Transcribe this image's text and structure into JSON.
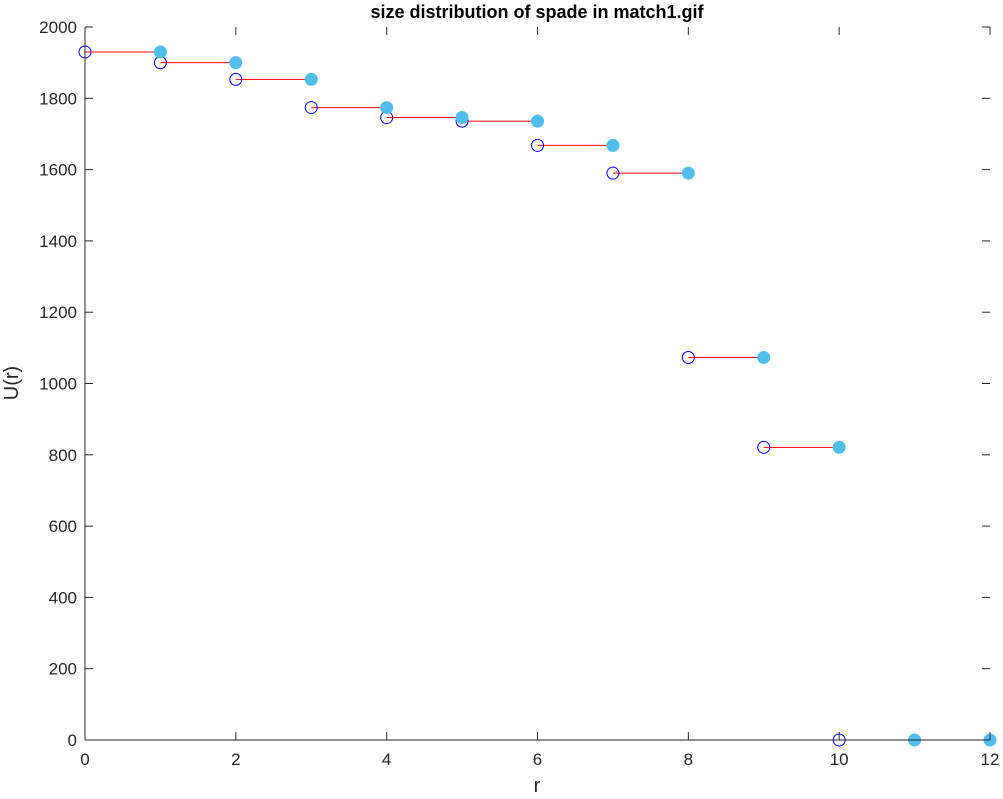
{
  "chart_data": {
    "type": "scatter",
    "title": "size distribution of spade in match1.gif",
    "xlabel": "r",
    "ylabel": "U(r)",
    "xlim": [
      0,
      12
    ],
    "ylim": [
      0,
      2000
    ],
    "xticks": [
      "0",
      "2",
      "4",
      "6",
      "8",
      "10",
      "12"
    ],
    "yticks": [
      "0",
      "200",
      "400",
      "600",
      "800",
      "1000",
      "1200",
      "1400",
      "1600",
      "1800",
      "2000"
    ],
    "grid": false,
    "series": [
      {
        "name": "open-circles",
        "marker": "open-circle",
        "color": "#0000ff",
        "points": [
          [
            0,
            1930
          ],
          [
            1,
            1900
          ],
          [
            2,
            1853
          ],
          [
            3,
            1774
          ],
          [
            4,
            1746
          ],
          [
            5,
            1736
          ],
          [
            6,
            1668
          ],
          [
            7,
            1590
          ],
          [
            8,
            1073
          ],
          [
            9,
            821
          ],
          [
            10,
            0
          ]
        ]
      },
      {
        "name": "filled-dots",
        "marker": "filled-circle",
        "color": "#4dbeee",
        "points": [
          [
            1,
            1930
          ],
          [
            2,
            1900
          ],
          [
            3,
            1853
          ],
          [
            4,
            1774
          ],
          [
            5,
            1746
          ],
          [
            6,
            1736
          ],
          [
            7,
            1668
          ],
          [
            8,
            1590
          ],
          [
            9,
            1073
          ],
          [
            10,
            821
          ],
          [
            11,
            0
          ],
          [
            12,
            0
          ]
        ]
      }
    ],
    "segments": {
      "color": "#ff0000",
      "lines": [
        {
          "x": [
            0,
            1
          ],
          "y": 1930
        },
        {
          "x": [
            1,
            2
          ],
          "y": 1900
        },
        {
          "x": [
            2,
            3
          ],
          "y": 1853
        },
        {
          "x": [
            3,
            4
          ],
          "y": 1774
        },
        {
          "x": [
            4,
            5
          ],
          "y": 1746
        },
        {
          "x": [
            5,
            6
          ],
          "y": 1736
        },
        {
          "x": [
            6,
            7
          ],
          "y": 1668
        },
        {
          "x": [
            7,
            8
          ],
          "y": 1590
        },
        {
          "x": [
            8,
            9
          ],
          "y": 1073
        },
        {
          "x": [
            9,
            10
          ],
          "y": 821
        },
        {
          "x": [
            10,
            12
          ],
          "y": 0
        }
      ]
    }
  }
}
